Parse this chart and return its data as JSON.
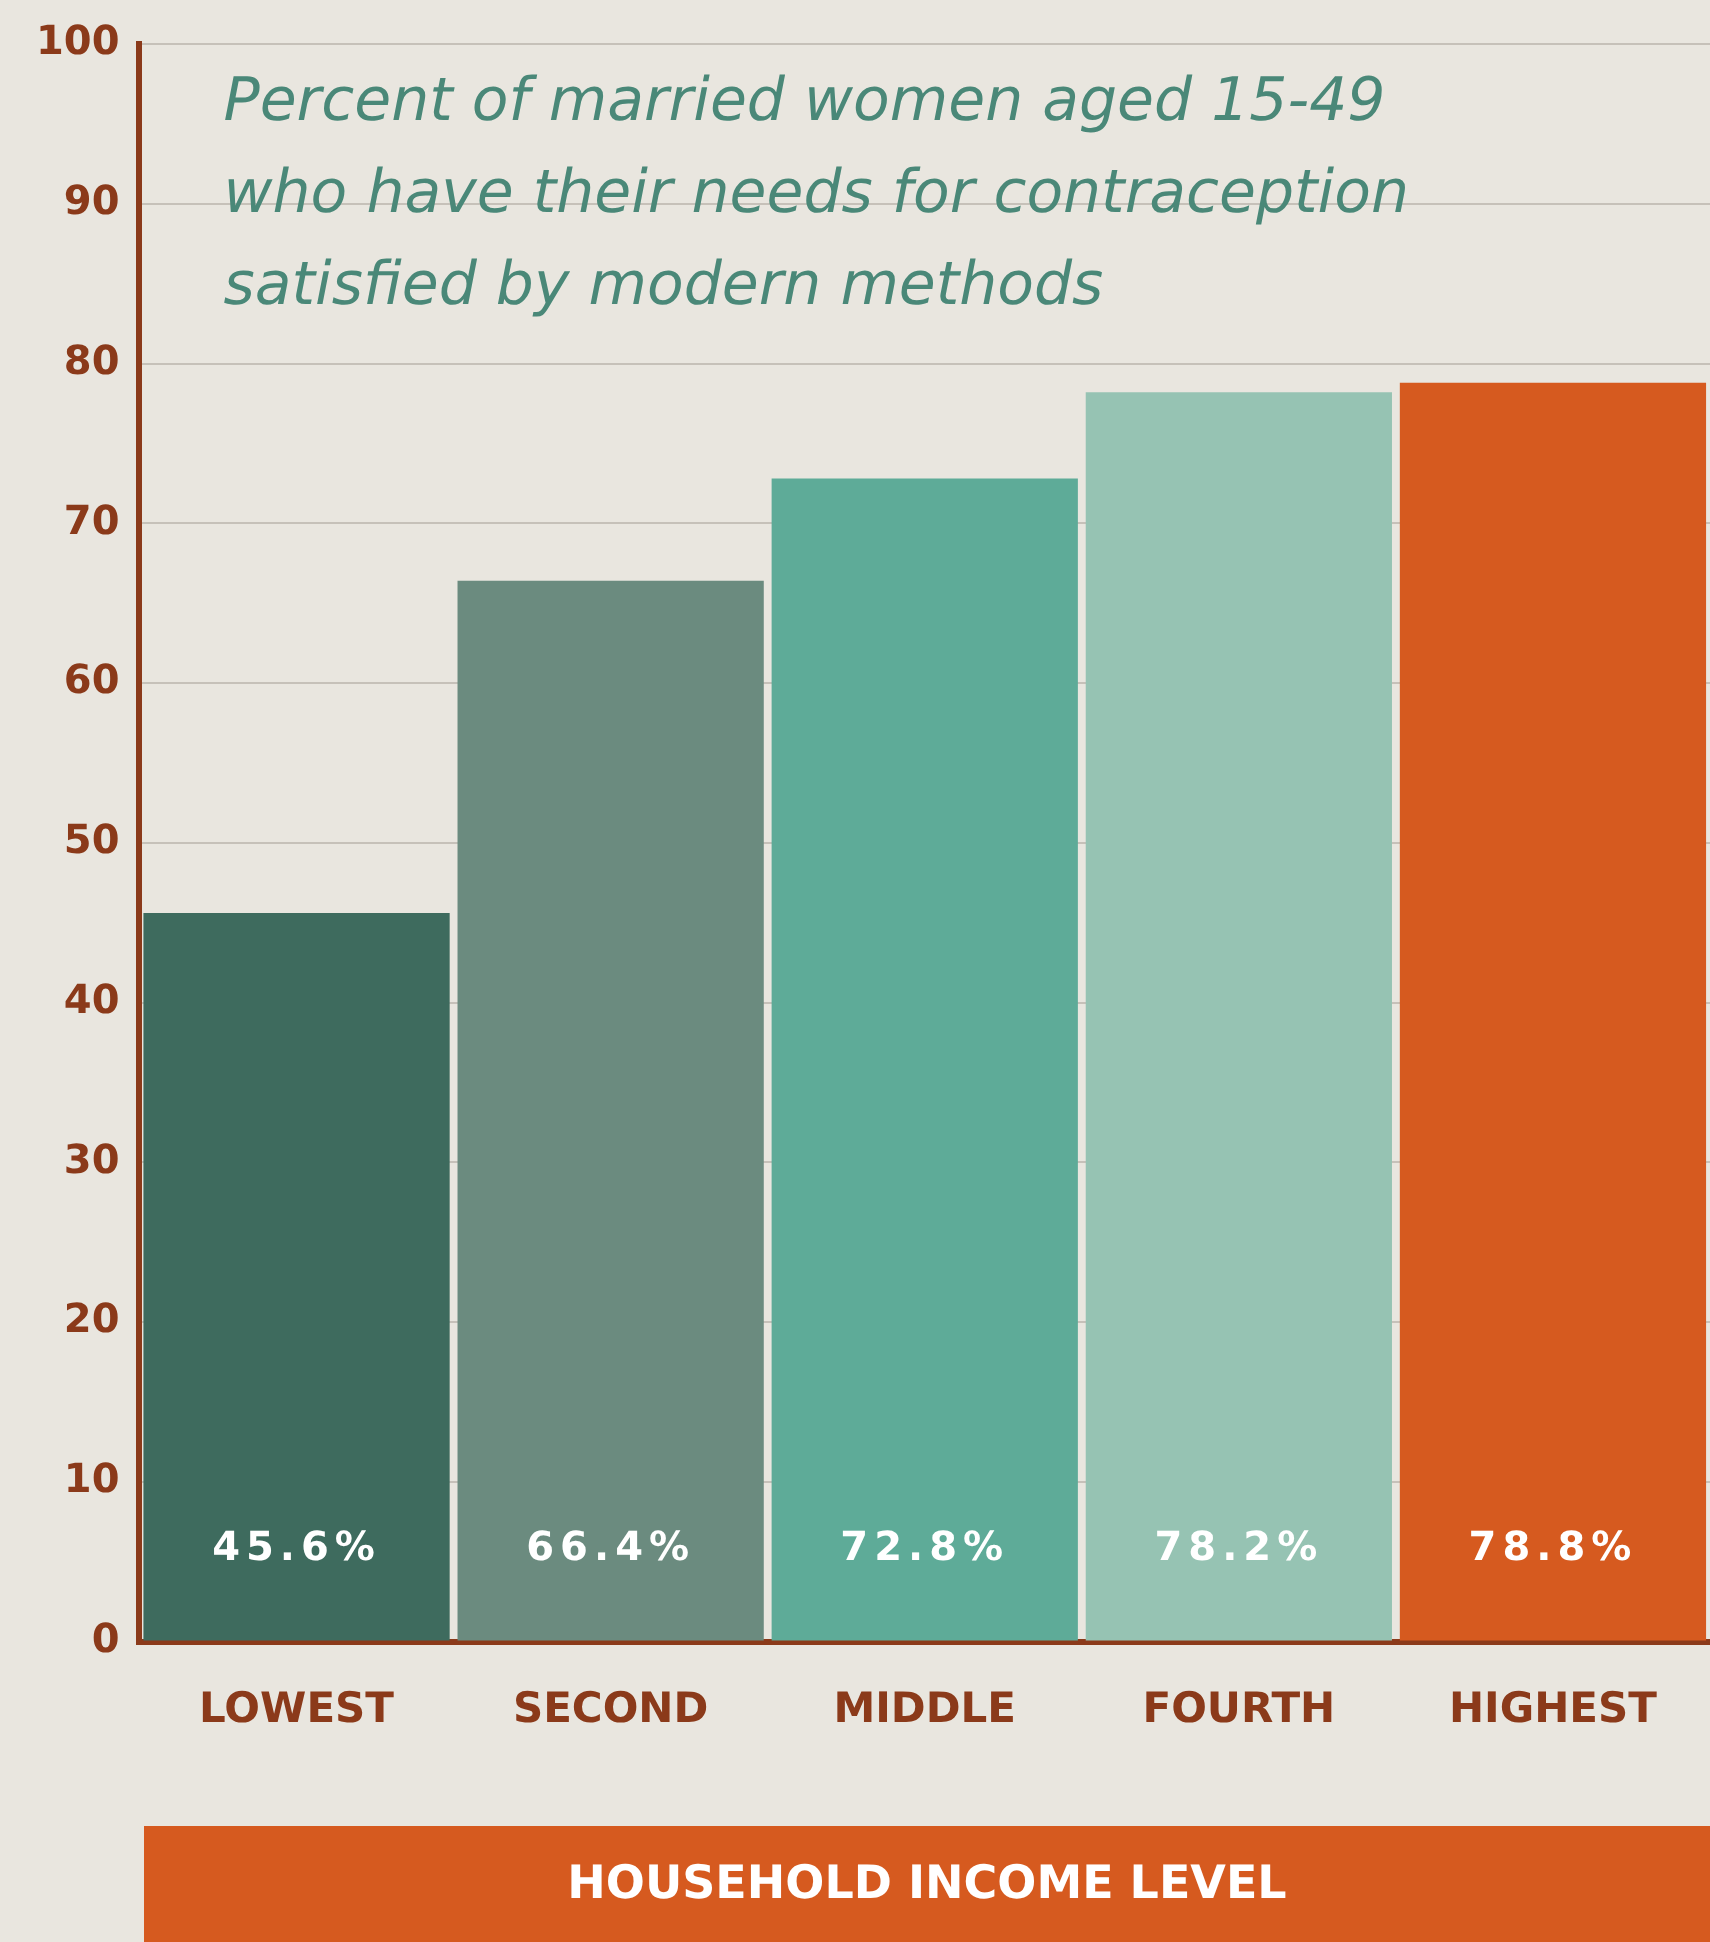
{
  "chart_data": {
    "type": "bar",
    "title": "Percent of married women aged 15-49 who have their needs for contraception satisfied by modern methods",
    "xlabel": "HOUSEHOLD INCOME LEVEL",
    "categories": [
      "LOWEST",
      "SECOND",
      "MIDDLE",
      "FOURTH",
      "HIGHEST"
    ],
    "values": [
      45.6,
      66.4,
      72.8,
      78.2,
      78.8
    ],
    "colors": [
      "#3e6b5e",
      "#6b8b7f",
      "#5eab98",
      "#96c3b3",
      "#d65a1f"
    ],
    "value_labels": [
      "45.6%",
      "66.4%",
      "72.8%",
      "78.2%",
      "78.8%"
    ],
    "ylim": [
      0,
      100
    ],
    "yticks": [
      0,
      10,
      20,
      30,
      40,
      50,
      60,
      70,
      80,
      90,
      100
    ],
    "grid": "y",
    "legend": false
  }
}
